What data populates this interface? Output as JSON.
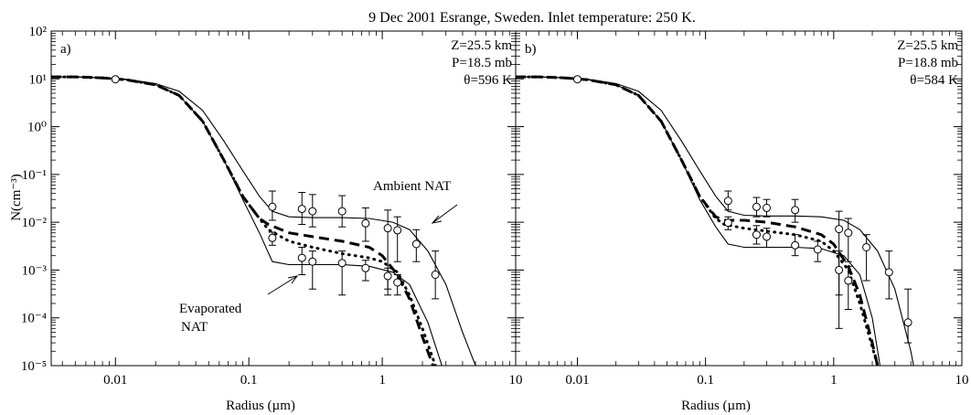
{
  "figure_title": "9 Dec 2001 Esrange, Sweden. Inlet temperature: 250 K.",
  "colors": {
    "ink": "#000000",
    "background": "#ffffff"
  },
  "chart_data": [
    {
      "type": "line",
      "panel_label": "a)",
      "xlabel": "Radius (µm)",
      "ylabel": "N(cm⁻³)",
      "xscale": "log",
      "yscale": "log",
      "xlim": [
        0.0033,
        10
      ],
      "ylim": [
        1e-05,
        100
      ],
      "grid": false,
      "xtick_labels": [
        "0.01",
        "0.1",
        "1",
        "10"
      ],
      "ytick_labels": [
        "10⁻⁵",
        "10⁻⁴",
        "10⁻³",
        "10⁻²",
        "10⁻¹",
        "10⁰",
        "10¹",
        "10²"
      ],
      "info_lines": [
        "Z=25.5 km",
        "P=18.5 mb",
        "θ=596  K"
      ],
      "annotations": [
        "Ambient NAT",
        "Evaporated",
        "NAT"
      ],
      "series": [
        {
          "style": "solid-upper",
          "x": [
            0.0033,
            0.005,
            0.008,
            0.012,
            0.02,
            0.03,
            0.045,
            0.065,
            0.09,
            0.12,
            0.15,
            0.2,
            0.3,
            0.5,
            0.8,
            1.2,
            1.6,
            2.2,
            3,
            4,
            5
          ],
          "y": [
            11,
            11,
            10.5,
            9.8,
            8,
            5.5,
            2.2,
            0.5,
            0.12,
            0.035,
            0.017,
            0.013,
            0.0125,
            0.0125,
            0.012,
            0.01,
            0.007,
            0.0025,
            0.0005,
            5e-05,
            1e-05
          ]
        },
        {
          "style": "solid-lower",
          "x": [
            0.0033,
            0.005,
            0.008,
            0.012,
            0.02,
            0.03,
            0.045,
            0.065,
            0.09,
            0.12,
            0.15,
            0.2,
            0.3,
            0.5,
            0.8,
            1.2,
            1.6,
            2.2,
            2.8
          ],
          "y": [
            11,
            11,
            10.5,
            9.6,
            7.5,
            4.5,
            1.3,
            0.2,
            0.03,
            0.006,
            0.0015,
            0.0013,
            0.0013,
            0.0013,
            0.0012,
            0.0009,
            0.0005,
            8e-05,
            1e-05
          ]
        },
        {
          "style": "dashed",
          "x": [
            0.0033,
            0.005,
            0.008,
            0.012,
            0.02,
            0.03,
            0.045,
            0.065,
            0.09,
            0.12,
            0.14,
            0.2,
            0.3,
            0.5,
            0.8,
            1.0,
            1.3,
            1.6,
            2.0,
            2.4
          ],
          "y": [
            11,
            11,
            10.5,
            9.6,
            7.5,
            4.5,
            1.3,
            0.2,
            0.035,
            0.012,
            0.009,
            0.006,
            0.005,
            0.004,
            0.003,
            0.002,
            0.0008,
            0.00025,
            4e-05,
            1e-05
          ]
        },
        {
          "style": "dotted",
          "x": [
            0.0033,
            0.005,
            0.008,
            0.012,
            0.02,
            0.03,
            0.045,
            0.065,
            0.09,
            0.12,
            0.14,
            0.2,
            0.3,
            0.5,
            0.8,
            1.0,
            1.3,
            1.6,
            2.0,
            2.5
          ],
          "y": [
            11,
            11,
            10.5,
            9.6,
            7.5,
            4.5,
            1.3,
            0.2,
            0.035,
            0.012,
            0.007,
            0.004,
            0.003,
            0.0022,
            0.0018,
            0.0015,
            0.0009,
            0.0003,
            6e-05,
            1e-05
          ]
        }
      ],
      "observations": [
        {
          "x": 0.01,
          "y": 9.8,
          "lo": 9.3,
          "hi": 10.3
        },
        {
          "x": 0.15,
          "y": 0.021,
          "lo": 0.011,
          "hi": 0.045
        },
        {
          "x": 0.25,
          "y": 0.019,
          "lo": 0.009,
          "hi": 0.042
        },
        {
          "x": 0.3,
          "y": 0.017,
          "lo": 0.008,
          "hi": 0.038
        },
        {
          "x": 0.5,
          "y": 0.017,
          "lo": 0.008,
          "hi": 0.036
        },
        {
          "x": 0.75,
          "y": 0.0095,
          "lo": 0.004,
          "hi": 0.02
        },
        {
          "x": 1.1,
          "y": 0.0075,
          "lo": 0.0003,
          "hi": 0.018
        },
        {
          "x": 1.3,
          "y": 0.0068,
          "lo": 0.0015,
          "hi": 0.013
        },
        {
          "x": 1.8,
          "y": 0.0035,
          "lo": 0.0015,
          "hi": 0.007
        },
        {
          "x": 2.5,
          "y": 0.0008,
          "lo": 0.00025,
          "hi": 0.0025
        },
        {
          "x": 0.15,
          "y": 0.0047,
          "lo": 0.0033,
          "hi": 0.0062
        },
        {
          "x": 0.25,
          "y": 0.0018,
          "lo": 0.0008,
          "hi": 0.003
        },
        {
          "x": 0.3,
          "y": 0.0015,
          "lo": 0.0004,
          "hi": 0.0025
        },
        {
          "x": 0.5,
          "y": 0.0014,
          "lo": 0.0003,
          "hi": 0.0025
        },
        {
          "x": 0.75,
          "y": 0.0011,
          "lo": 0.0006,
          "hi": 0.0016
        },
        {
          "x": 1.1,
          "y": 0.00075,
          "lo": 0.0004,
          "hi": 0.0011
        },
        {
          "x": 1.3,
          "y": 0.00055,
          "lo": 0.0003,
          "hi": 0.0008
        }
      ]
    },
    {
      "type": "line",
      "panel_label": "b)",
      "xlabel": "Radius (µm)",
      "ylabel": "",
      "xscale": "log",
      "yscale": "log",
      "xlim": [
        0.0033,
        10
      ],
      "ylim": [
        1e-05,
        100
      ],
      "grid": false,
      "xtick_labels": [
        "0.01",
        "0.1",
        "1",
        "10"
      ],
      "ytick_labels": [],
      "info_lines": [
        "Z=25.5 km",
        "P=18.8 mb",
        "θ=584  K"
      ],
      "annotations": [],
      "series": [
        {
          "style": "solid-upper",
          "x": [
            0.0033,
            0.005,
            0.008,
            0.012,
            0.02,
            0.03,
            0.045,
            0.065,
            0.09,
            0.12,
            0.15,
            0.2,
            0.3,
            0.5,
            0.8,
            1.2,
            1.6,
            2.2,
            3,
            4,
            4.2
          ],
          "y": [
            11,
            11,
            10.5,
            9.8,
            8,
            5.5,
            2.2,
            0.5,
            0.12,
            0.035,
            0.017,
            0.014,
            0.0135,
            0.0135,
            0.013,
            0.011,
            0.007,
            0.0025,
            0.0004,
            2e-05,
            1e-05
          ]
        },
        {
          "style": "solid-lower",
          "x": [
            0.0033,
            0.005,
            0.008,
            0.012,
            0.02,
            0.03,
            0.045,
            0.065,
            0.09,
            0.12,
            0.15,
            0.2,
            0.3,
            0.5,
            0.8,
            1.2,
            1.6,
            2.0,
            2.3
          ],
          "y": [
            11,
            11,
            10.5,
            9.6,
            7.5,
            4.5,
            1.3,
            0.2,
            0.03,
            0.008,
            0.0035,
            0.003,
            0.003,
            0.003,
            0.0028,
            0.002,
            0.0008,
            0.0001,
            1e-05
          ]
        },
        {
          "style": "dashed",
          "x": [
            0.0033,
            0.005,
            0.008,
            0.012,
            0.02,
            0.03,
            0.045,
            0.065,
            0.09,
            0.12,
            0.14,
            0.2,
            0.3,
            0.5,
            0.8,
            1.0,
            1.3,
            1.6,
            2.0,
            2.2
          ],
          "y": [
            11,
            11,
            10.5,
            9.6,
            7.5,
            4.5,
            1.3,
            0.2,
            0.035,
            0.013,
            0.011,
            0.011,
            0.01,
            0.008,
            0.0055,
            0.0035,
            0.0012,
            0.0003,
            3e-05,
            1e-05
          ]
        },
        {
          "style": "dotted",
          "x": [
            0.0033,
            0.005,
            0.008,
            0.012,
            0.02,
            0.03,
            0.045,
            0.065,
            0.09,
            0.12,
            0.14,
            0.2,
            0.3,
            0.5,
            0.8,
            1.0,
            1.3,
            1.6,
            1.9,
            2.2
          ],
          "y": [
            11,
            11,
            10.5,
            9.6,
            7.5,
            4.5,
            1.3,
            0.2,
            0.035,
            0.012,
            0.009,
            0.0075,
            0.0065,
            0.0055,
            0.004,
            0.0025,
            0.001,
            0.0002,
            4e-05,
            1e-05
          ]
        }
      ],
      "observations": [
        {
          "x": 0.01,
          "y": 9.8,
          "lo": 9.3,
          "hi": 10.3
        },
        {
          "x": 0.15,
          "y": 0.028,
          "lo": 0.018,
          "hi": 0.045
        },
        {
          "x": 0.25,
          "y": 0.021,
          "lo": 0.013,
          "hi": 0.033
        },
        {
          "x": 0.3,
          "y": 0.02,
          "lo": 0.013,
          "hi": 0.03
        },
        {
          "x": 0.5,
          "y": 0.018,
          "lo": 0.01,
          "hi": 0.03
        },
        {
          "x": 1.1,
          "y": 0.0072,
          "lo": 0.0003,
          "hi": 0.017
        },
        {
          "x": 1.3,
          "y": 0.006,
          "lo": 0.0015,
          "hi": 0.012
        },
        {
          "x": 1.8,
          "y": 0.003,
          "lo": 0.0006,
          "hi": 0.0055
        },
        {
          "x": 2.7,
          "y": 0.0009,
          "lo": 0.00025,
          "hi": 0.0025
        },
        {
          "x": 3.8,
          "y": 8e-05,
          "lo": 3e-05,
          "hi": 0.0004
        },
        {
          "x": 0.15,
          "y": 0.0098,
          "lo": 0.007,
          "hi": 0.013
        },
        {
          "x": 0.25,
          "y": 0.0055,
          "lo": 0.0035,
          "hi": 0.0085
        },
        {
          "x": 0.3,
          "y": 0.005,
          "lo": 0.003,
          "hi": 0.0075
        },
        {
          "x": 0.5,
          "y": 0.0033,
          "lo": 0.002,
          "hi": 0.0055
        },
        {
          "x": 0.75,
          "y": 0.0027,
          "lo": 0.0015,
          "hi": 0.004
        },
        {
          "x": 1.1,
          "y": 0.001,
          "lo": 6e-05,
          "hi": 0.0025
        },
        {
          "x": 1.3,
          "y": 0.0006,
          "lo": 0.00015,
          "hi": 0.0012
        }
      ]
    }
  ]
}
